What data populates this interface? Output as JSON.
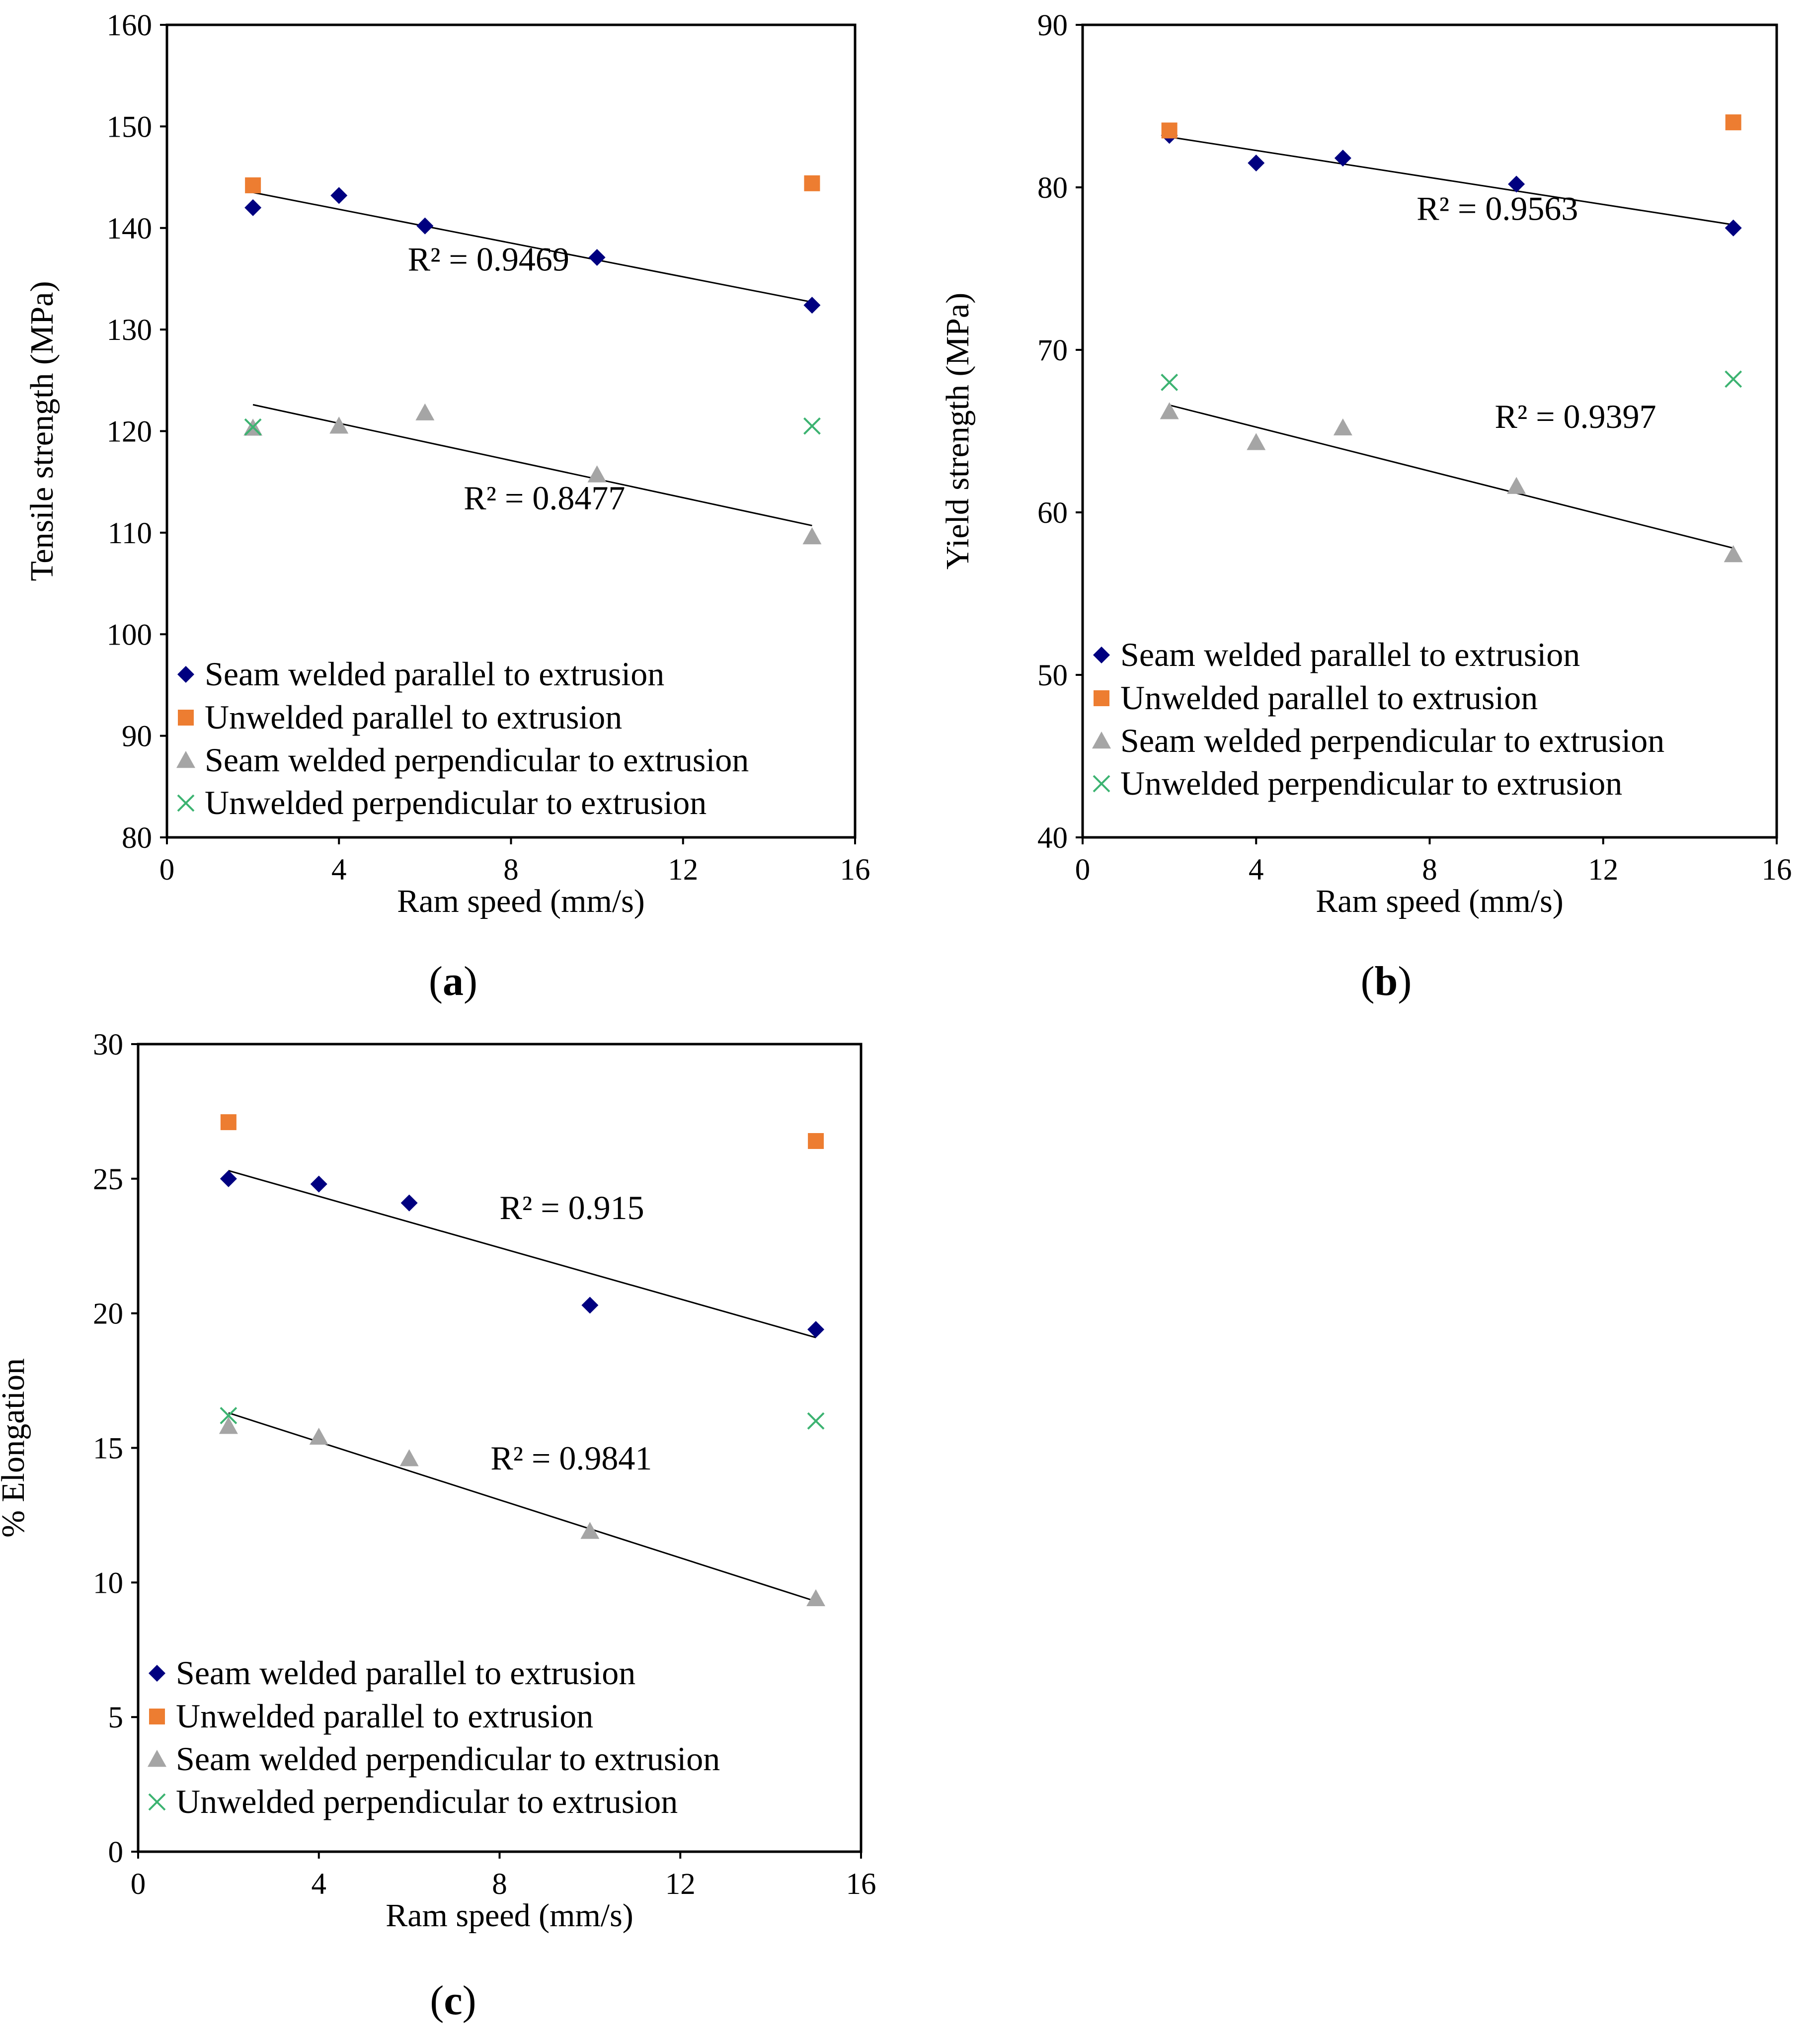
{
  "figure_title": "",
  "legend_labels": [
    "Seam welded parallel to extrusion",
    "Unwelded parallel to extrusion",
    "Seam welded perpendicular to extrusion",
    "Unwelded perpendicular to extrusion"
  ],
  "colors": {
    "seam_parallel": "#000080",
    "unwelded_parallel": "#ED7D31",
    "seam_perpendicular": "#A5A5A5",
    "unwelded_perpendicular": "#3CB371",
    "trendline": "#000000"
  },
  "chart_data": [
    {
      "type": "scatter",
      "panel_label": "a",
      "title": "",
      "xlabel": "Ram speed (mm/s)",
      "ylabel": "Tensile strength (MPa)",
      "xlim": [
        0,
        16
      ],
      "ylim": [
        80,
        160
      ],
      "xticks": [
        0,
        4,
        8,
        12,
        16
      ],
      "yticks": [
        80,
        90,
        100,
        110,
        120,
        130,
        140,
        150,
        160
      ],
      "grid": false,
      "legend_position": "bottom-left",
      "series": [
        {
          "name": "Seam welded parallel to extrusion",
          "marker": "diamond",
          "x": [
            2,
            4,
            6,
            10,
            15
          ],
          "y": [
            142,
            143.2,
            140.2,
            137.1,
            132.4
          ]
        },
        {
          "name": "Unwelded parallel to extrusion",
          "marker": "square",
          "x": [
            2,
            15
          ],
          "y": [
            144.2,
            144.4
          ]
        },
        {
          "name": "Seam welded perpendicular to extrusion",
          "marker": "triangle",
          "x": [
            2,
            4,
            6,
            10,
            15
          ],
          "y": [
            120.3,
            120.5,
            121.8,
            115.7,
            109.6
          ]
        },
        {
          "name": "Unwelded perpendicular to extrusion",
          "marker": "cross",
          "x": [
            2,
            15
          ],
          "y": [
            120.4,
            120.5
          ]
        }
      ],
      "trendlines": [
        {
          "series": "Seam welded parallel to extrusion",
          "x": [
            2,
            15
          ],
          "y": [
            143.5,
            132.7
          ],
          "r2_label": "R² = 0.9469",
          "label_x": 5.6,
          "label_y": 135.8
        },
        {
          "series": "Seam welded perpendicular to extrusion",
          "x": [
            2,
            15
          ],
          "y": [
            122.6,
            110.7
          ],
          "r2_label": "R² = 0.8477",
          "label_x": 6.9,
          "label_y": 112.3
        }
      ]
    },
    {
      "type": "scatter",
      "panel_label": "b",
      "title": "",
      "xlabel": "Ram speed (mm/s)",
      "ylabel": "Yield strength (MPa)",
      "xlim": [
        0,
        16
      ],
      "ylim": [
        40,
        90
      ],
      "xticks": [
        0,
        4,
        8,
        12,
        16
      ],
      "yticks": [
        40,
        50,
        60,
        70,
        80,
        90
      ],
      "grid": false,
      "legend_position": "bottom-left",
      "series": [
        {
          "name": "Seam welded parallel to extrusion",
          "marker": "diamond",
          "x": [
            2,
            4,
            6,
            10,
            15
          ],
          "y": [
            83.2,
            81.5,
            81.8,
            80.2,
            77.5
          ]
        },
        {
          "name": "Unwelded parallel to extrusion",
          "marker": "square",
          "x": [
            2,
            15
          ],
          "y": [
            83.5,
            84
          ]
        },
        {
          "name": "Seam welded perpendicular to extrusion",
          "marker": "triangle",
          "x": [
            2,
            4,
            6,
            10,
            15
          ],
          "y": [
            66.2,
            64.3,
            65.2,
            61.6,
            57.4
          ]
        },
        {
          "name": "Unwelded perpendicular to extrusion",
          "marker": "cross",
          "x": [
            2,
            15
          ],
          "y": [
            68,
            68.2
          ]
        }
      ],
      "trendlines": [
        {
          "series": "Seam welded parallel to extrusion",
          "x": [
            2,
            15
          ],
          "y": [
            83.1,
            77.7
          ],
          "r2_label": "R² = 0.9563",
          "label_x": 7.7,
          "label_y": 78
        },
        {
          "series": "Seam welded perpendicular to extrusion",
          "x": [
            2,
            15
          ],
          "y": [
            66.6,
            57.8
          ],
          "r2_label": "R² = 0.9397",
          "label_x": 9.5,
          "label_y": 65.2
        }
      ]
    },
    {
      "type": "scatter",
      "panel_label": "c",
      "title": "",
      "xlabel": "Ram speed (mm/s)",
      "ylabel": "% Elongation",
      "xlim": [
        0,
        16
      ],
      "ylim": [
        0,
        30
      ],
      "xticks": [
        0,
        4,
        8,
        12,
        16
      ],
      "yticks": [
        0,
        5,
        10,
        15,
        20,
        25,
        30
      ],
      "grid": false,
      "legend_position": "bottom-left",
      "series": [
        {
          "name": "Seam welded parallel to extrusion",
          "marker": "diamond",
          "x": [
            2,
            4,
            6,
            10,
            15
          ],
          "y": [
            25,
            24.8,
            24.1,
            20.3,
            19.4
          ]
        },
        {
          "name": "Unwelded parallel to extrusion",
          "marker": "square",
          "x": [
            2,
            15
          ],
          "y": [
            27.1,
            26.4
          ]
        },
        {
          "name": "Seam welded perpendicular to extrusion",
          "marker": "triangle",
          "x": [
            2,
            4,
            6,
            10,
            15
          ],
          "y": [
            15.8,
            15.4,
            14.6,
            11.9,
            9.4
          ]
        },
        {
          "name": "Unwelded perpendicular to extrusion",
          "marker": "cross",
          "x": [
            2,
            15
          ],
          "y": [
            16.2,
            16
          ]
        }
      ],
      "trendlines": [
        {
          "series": "Seam welded parallel to extrusion",
          "x": [
            2,
            15
          ],
          "y": [
            25.3,
            19.1
          ],
          "r2_label": "R² = 0.915",
          "label_x": 8,
          "label_y": 23.5
        },
        {
          "series": "Seam welded perpendicular to extrusion",
          "x": [
            2,
            15
          ],
          "y": [
            16.3,
            9.3
          ],
          "r2_label": "R² = 0.9841",
          "label_x": 7.8,
          "label_y": 14.2
        }
      ]
    }
  ]
}
